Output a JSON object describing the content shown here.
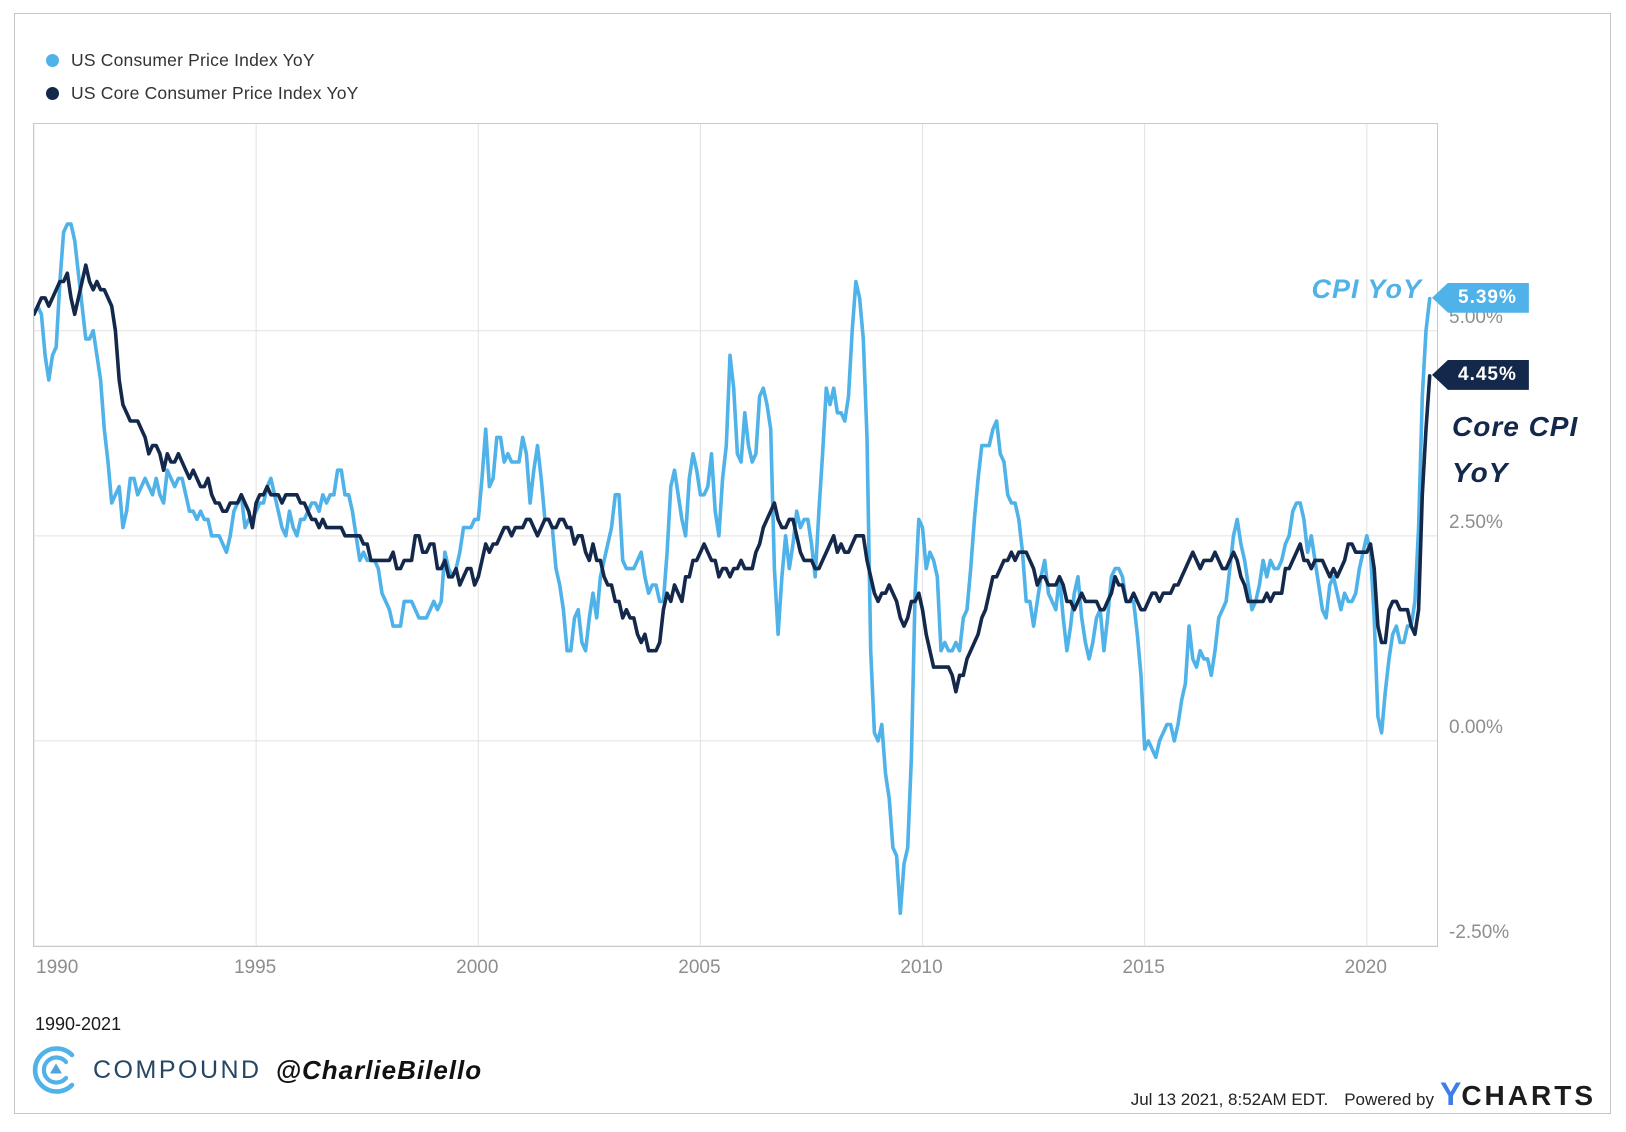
{
  "legend": {
    "items": [
      {
        "label": "US Consumer Price Index YoY",
        "color": "#4FB2E8"
      },
      {
        "label": "US Core Consumer Price Index YoY",
        "color": "#13284A"
      }
    ]
  },
  "annotations": {
    "cpi_callout": "CPI YoY",
    "cpi_badge": "5.39%",
    "core_callout_line1": "Core CPI",
    "core_callout_line2": "YoY",
    "core_badge": "4.45%"
  },
  "footer": {
    "range_note": "1990-2021",
    "brand": "COMPOUND",
    "handle": "@CharlieBilello",
    "timestamp": "Jul 13 2021, 8:52AM EDT.",
    "powered_by": "Powered by",
    "ycharts_y": "Y",
    "ycharts_rest": "CHARTS"
  },
  "colors": {
    "cpi_line": "#4FB2E8",
    "core_line": "#13284A",
    "grid": "#e2e2e2",
    "plot_border": "#c9c9c9",
    "axis_text": "#8e8e8e",
    "ycharts_blue": "#3D7EEA",
    "compound_blue": "#4FB2E8"
  },
  "chart_data": {
    "type": "line",
    "title": "",
    "x_start_year": 1990,
    "points_per_year": 12,
    "xlim": [
      1990,
      2021.58
    ],
    "ylim": [
      -2.5,
      7.52
    ],
    "grid": true,
    "legend_position": "top-left",
    "x_ticks": [
      {
        "label": "1990",
        "year": 1990
      },
      {
        "label": "1995",
        "year": 1995
      },
      {
        "label": "2000",
        "year": 2000
      },
      {
        "label": "2005",
        "year": 2005
      },
      {
        "label": "2010",
        "year": 2010
      },
      {
        "label": "2015",
        "year": 2015
      },
      {
        "label": "2020",
        "year": 2020
      }
    ],
    "y_ticks": [
      {
        "label": "5.00%",
        "value": 5.0
      },
      {
        "label": "2.50%",
        "value": 2.5
      },
      {
        "label": "0.00%",
        "value": 0.0
      },
      {
        "label": "-2.50%",
        "value": -2.5
      }
    ],
    "series": [
      {
        "name": "US Consumer Price Index YoY",
        "color": "#4FB2E8",
        "end_label": "5.39%",
        "end_value": 5.39,
        "values_by_year": [
          [
            5.2,
            5.3,
            5.2,
            4.7,
            4.4,
            4.7,
            4.8,
            5.6,
            6.2,
            6.3,
            6.3,
            6.1
          ],
          [
            5.7,
            5.3,
            4.9,
            4.9,
            5.0,
            4.7,
            4.4,
            3.8,
            3.4,
            2.9,
            3.0,
            3.1
          ],
          [
            2.6,
            2.8,
            3.2,
            3.2,
            3.0,
            3.1,
            3.2,
            3.1,
            3.0,
            3.2,
            3.0,
            2.9
          ],
          [
            3.3,
            3.2,
            3.1,
            3.2,
            3.2,
            3.0,
            2.8,
            2.8,
            2.7,
            2.8,
            2.7,
            2.7
          ],
          [
            2.5,
            2.5,
            2.5,
            2.4,
            2.3,
            2.5,
            2.8,
            2.9,
            3.0,
            2.6,
            2.7,
            2.7
          ],
          [
            2.8,
            2.9,
            2.9,
            3.1,
            3.2,
            3.0,
            2.8,
            2.6,
            2.5,
            2.8,
            2.6,
            2.5
          ],
          [
            2.7,
            2.7,
            2.8,
            2.9,
            2.9,
            2.8,
            3.0,
            2.9,
            3.0,
            3.0,
            3.3,
            3.3
          ],
          [
            3.0,
            3.0,
            2.8,
            2.5,
            2.2,
            2.3,
            2.2,
            2.2,
            2.2,
            2.1,
            1.8,
            1.7
          ],
          [
            1.6,
            1.4,
            1.4,
            1.4,
            1.7,
            1.7,
            1.7,
            1.6,
            1.5,
            1.5,
            1.5,
            1.6
          ],
          [
            1.7,
            1.6,
            1.7,
            2.3,
            2.1,
            2.0,
            2.1,
            2.3,
            2.6,
            2.6,
            2.6,
            2.7
          ],
          [
            2.7,
            3.2,
            3.8,
            3.1,
            3.2,
            3.7,
            3.7,
            3.4,
            3.5,
            3.4,
            3.4,
            3.4
          ],
          [
            3.7,
            3.5,
            2.9,
            3.3,
            3.6,
            3.2,
            2.7,
            2.7,
            2.6,
            2.1,
            1.9,
            1.6
          ],
          [
            1.1,
            1.1,
            1.5,
            1.6,
            1.2,
            1.1,
            1.5,
            1.8,
            1.5,
            2.0,
            2.2,
            2.4
          ],
          [
            2.6,
            3.0,
            3.0,
            2.2,
            2.1,
            2.1,
            2.1,
            2.2,
            2.3,
            2.0,
            1.8,
            1.9
          ],
          [
            1.9,
            1.7,
            1.7,
            2.3,
            3.1,
            3.3,
            3.0,
            2.7,
            2.5,
            3.2,
            3.5,
            3.3
          ],
          [
            3.0,
            3.0,
            3.1,
            3.5,
            2.8,
            2.5,
            3.2,
            3.6,
            4.7,
            4.3,
            3.5,
            3.4
          ],
          [
            4.0,
            3.6,
            3.4,
            3.5,
            4.2,
            4.3,
            4.1,
            3.8,
            2.1,
            1.3,
            2.0,
            2.5
          ],
          [
            2.1,
            2.4,
            2.8,
            2.6,
            2.7,
            2.7,
            2.4,
            2.0,
            2.8,
            3.5,
            4.3,
            4.1
          ],
          [
            4.3,
            4.0,
            4.0,
            3.9,
            4.2,
            5.0,
            5.6,
            5.4,
            4.9,
            3.7,
            1.1,
            0.1
          ],
          [
            0.0,
            0.2,
            -0.4,
            -0.7,
            -1.3,
            -1.4,
            -2.1,
            -1.5,
            -1.3,
            -0.2,
            1.8,
            2.7
          ],
          [
            2.6,
            2.1,
            2.3,
            2.2,
            2.0,
            1.1,
            1.2,
            1.1,
            1.1,
            1.2,
            1.1,
            1.5
          ],
          [
            1.6,
            2.1,
            2.7,
            3.2,
            3.6,
            3.6,
            3.6,
            3.8,
            3.9,
            3.5,
            3.4,
            3.0
          ],
          [
            2.9,
            2.9,
            2.7,
            2.3,
            1.7,
            1.7,
            1.4,
            1.7,
            2.0,
            2.2,
            1.8,
            1.7
          ],
          [
            1.6,
            2.0,
            1.5,
            1.1,
            1.4,
            1.8,
            2.0,
            1.5,
            1.2,
            1.0,
            1.2,
            1.5
          ],
          [
            1.6,
            1.1,
            1.5,
            2.0,
            2.1,
            2.1,
            2.0,
            1.7,
            1.7,
            1.7,
            1.3,
            0.8
          ],
          [
            -0.1,
            0.0,
            -0.1,
            -0.2,
            0.0,
            0.1,
            0.2,
            0.2,
            0.0,
            0.2,
            0.5,
            0.7
          ],
          [
            1.4,
            1.0,
            0.9,
            1.1,
            1.0,
            1.0,
            0.8,
            1.1,
            1.5,
            1.6,
            1.7,
            2.1
          ],
          [
            2.5,
            2.7,
            2.4,
            2.2,
            1.9,
            1.6,
            1.7,
            1.9,
            2.2,
            2.0,
            2.2,
            2.1
          ],
          [
            2.1,
            2.2,
            2.4,
            2.5,
            2.8,
            2.9,
            2.9,
            2.7,
            2.3,
            2.5,
            2.2,
            1.9
          ],
          [
            1.6,
            1.5,
            1.9,
            2.0,
            1.8,
            1.6,
            1.8,
            1.7,
            1.7,
            1.8,
            2.1,
            2.3
          ],
          [
            2.5,
            2.3,
            1.5,
            0.3,
            0.1,
            0.6,
            1.0,
            1.3,
            1.4,
            1.2,
            1.2,
            1.4
          ],
          [
            1.4,
            1.7,
            2.6,
            4.2,
            5.0,
            5.39
          ]
        ]
      },
      {
        "name": "US Core Consumer Price Index YoY",
        "color": "#13284A",
        "end_label": "4.45%",
        "end_value": 4.45,
        "values_by_year": [
          [
            5.2,
            5.3,
            5.4,
            5.4,
            5.3,
            5.4,
            5.5,
            5.6,
            5.6,
            5.7,
            5.4,
            5.2
          ],
          [
            5.4,
            5.6,
            5.8,
            5.6,
            5.5,
            5.6,
            5.5,
            5.5,
            5.4,
            5.3,
            5.0,
            4.4
          ],
          [
            4.1,
            4.0,
            3.9,
            3.9,
            3.9,
            3.8,
            3.7,
            3.5,
            3.6,
            3.6,
            3.5,
            3.3
          ],
          [
            3.5,
            3.4,
            3.4,
            3.5,
            3.4,
            3.3,
            3.2,
            3.3,
            3.2,
            3.1,
            3.1,
            3.2
          ],
          [
            3.0,
            2.9,
            2.9,
            2.8,
            2.8,
            2.9,
            2.9,
            2.9,
            3.0,
            2.9,
            2.8,
            2.6
          ],
          [
            2.9,
            3.0,
            3.0,
            3.1,
            3.0,
            3.0,
            3.0,
            2.9,
            3.0,
            3.0,
            3.0,
            3.0
          ],
          [
            2.9,
            2.9,
            2.8,
            2.7,
            2.7,
            2.6,
            2.7,
            2.6,
            2.6,
            2.6,
            2.6,
            2.6
          ],
          [
            2.5,
            2.5,
            2.5,
            2.5,
            2.5,
            2.4,
            2.4,
            2.2,
            2.2,
            2.2,
            2.2,
            2.2
          ],
          [
            2.2,
            2.3,
            2.1,
            2.1,
            2.2,
            2.2,
            2.2,
            2.5,
            2.5,
            2.3,
            2.3,
            2.4
          ],
          [
            2.4,
            2.1,
            2.1,
            2.2,
            2.0,
            2.0,
            2.1,
            1.9,
            2.0,
            2.1,
            2.1,
            1.9
          ],
          [
            2.0,
            2.2,
            2.4,
            2.3,
            2.4,
            2.4,
            2.5,
            2.6,
            2.6,
            2.5,
            2.6,
            2.6
          ],
          [
            2.6,
            2.7,
            2.7,
            2.6,
            2.5,
            2.6,
            2.7,
            2.7,
            2.6,
            2.6,
            2.7,
            2.7
          ],
          [
            2.6,
            2.6,
            2.4,
            2.5,
            2.5,
            2.3,
            2.2,
            2.4,
            2.2,
            2.2,
            2.0,
            1.9
          ],
          [
            1.9,
            1.7,
            1.7,
            1.5,
            1.6,
            1.5,
            1.5,
            1.3,
            1.2,
            1.3,
            1.1,
            1.1
          ],
          [
            1.1,
            1.2,
            1.6,
            1.8,
            1.7,
            1.9,
            1.8,
            1.7,
            2.0,
            2.0,
            2.2,
            2.2
          ],
          [
            2.3,
            2.4,
            2.3,
            2.2,
            2.2,
            2.0,
            2.1,
            2.1,
            2.0,
            2.1,
            2.1,
            2.2
          ],
          [
            2.1,
            2.1,
            2.1,
            2.3,
            2.4,
            2.6,
            2.7,
            2.8,
            2.9,
            2.7,
            2.6,
            2.6
          ],
          [
            2.7,
            2.7,
            2.5,
            2.3,
            2.2,
            2.2,
            2.2,
            2.1,
            2.1,
            2.2,
            2.3,
            2.4
          ],
          [
            2.5,
            2.3,
            2.4,
            2.3,
            2.3,
            2.4,
            2.5,
            2.5,
            2.5,
            2.2,
            2.0,
            1.8
          ],
          [
            1.7,
            1.8,
            1.8,
            1.9,
            1.8,
            1.7,
            1.5,
            1.4,
            1.5,
            1.7,
            1.7,
            1.8
          ],
          [
            1.6,
            1.3,
            1.1,
            0.9,
            0.9,
            0.9,
            0.9,
            0.9,
            0.8,
            0.6,
            0.8,
            0.8
          ],
          [
            1.0,
            1.1,
            1.2,
            1.3,
            1.5,
            1.6,
            1.8,
            2.0,
            2.0,
            2.1,
            2.2,
            2.2
          ],
          [
            2.3,
            2.2,
            2.3,
            2.3,
            2.3,
            2.2,
            2.1,
            1.9,
            2.0,
            2.0,
            1.9,
            1.9
          ],
          [
            1.9,
            2.0,
            1.9,
            1.7,
            1.7,
            1.6,
            1.7,
            1.8,
            1.7,
            1.7,
            1.7,
            1.7
          ],
          [
            1.6,
            1.6,
            1.7,
            1.8,
            2.0,
            1.9,
            1.9,
            1.7,
            1.7,
            1.8,
            1.7,
            1.6
          ],
          [
            1.6,
            1.7,
            1.8,
            1.8,
            1.7,
            1.8,
            1.8,
            1.8,
            1.9,
            1.9,
            2.0,
            2.1
          ],
          [
            2.2,
            2.3,
            2.2,
            2.1,
            2.2,
            2.2,
            2.2,
            2.3,
            2.2,
            2.1,
            2.1,
            2.2
          ],
          [
            2.3,
            2.2,
            2.0,
            1.9,
            1.7,
            1.7,
            1.7,
            1.7,
            1.7,
            1.8,
            1.7,
            1.8
          ],
          [
            1.8,
            1.8,
            2.1,
            2.1,
            2.2,
            2.3,
            2.4,
            2.2,
            2.2,
            2.1,
            2.2,
            2.2
          ],
          [
            2.2,
            2.1,
            2.0,
            2.1,
            2.0,
            2.1,
            2.2,
            2.4,
            2.4,
            2.3,
            2.3,
            2.3
          ],
          [
            2.3,
            2.4,
            2.1,
            1.4,
            1.2,
            1.2,
            1.6,
            1.7,
            1.7,
            1.6,
            1.6,
            1.6
          ],
          [
            1.4,
            1.3,
            1.6,
            3.0,
            3.8,
            4.45
          ]
        ]
      }
    ]
  }
}
